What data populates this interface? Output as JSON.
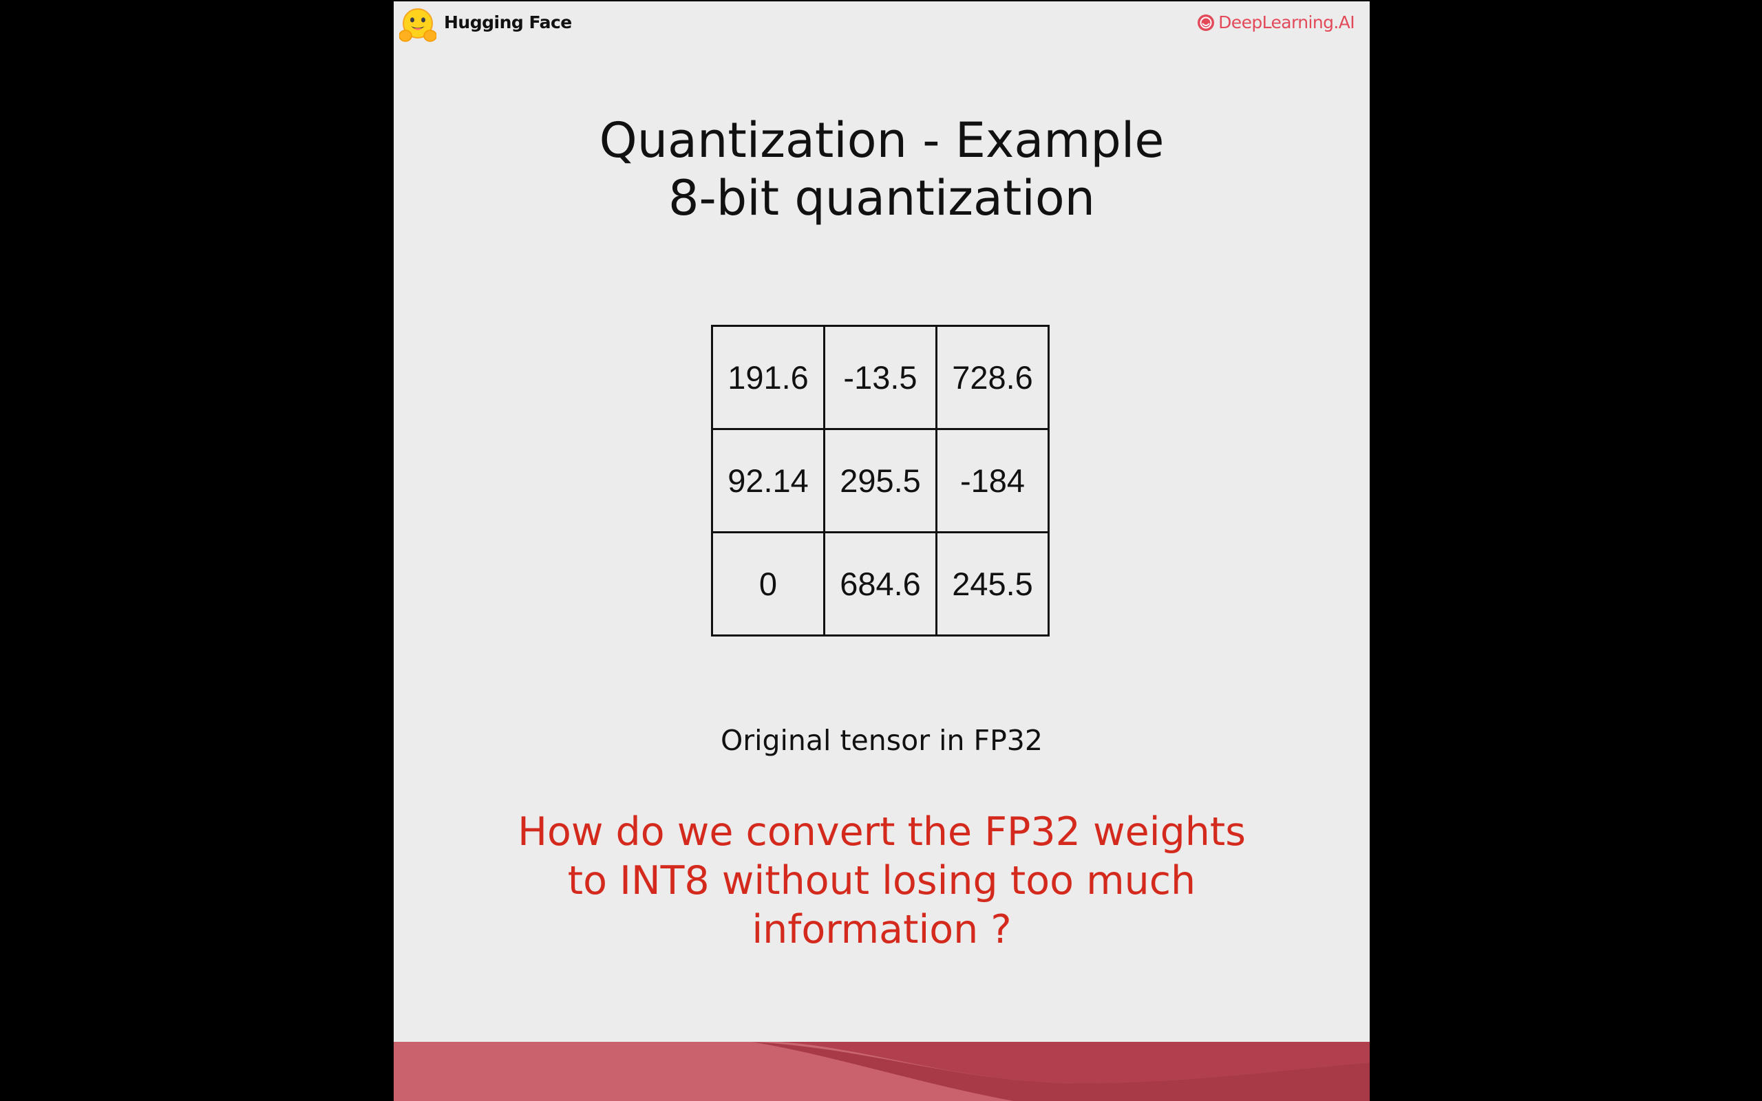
{
  "header": {
    "left_brand": "Hugging Face",
    "right_brand": "DeepLearning.AI",
    "right_brand_color": "#e24a5a",
    "left_logo_icon": "hugging-face-emoji-icon",
    "right_logo_icon": "deeplearning-ai-icon"
  },
  "slide": {
    "title_line1": "Quantization - Example",
    "title_line2": "8-bit quantization",
    "tensor": {
      "rows": [
        [
          "191.6",
          "-13.5",
          "728.6"
        ],
        [
          "92.14",
          "295.5",
          "-184"
        ],
        [
          "0",
          "684.6",
          "245.5"
        ]
      ]
    },
    "caption": "Original tensor in FP32",
    "question_line1": "How do we convert the FP32 weights",
    "question_line2": "to INT8 without losing too much",
    "question_line3": "information ?",
    "question_color": "#d42a1e",
    "footer_color": "#b5404e"
  }
}
